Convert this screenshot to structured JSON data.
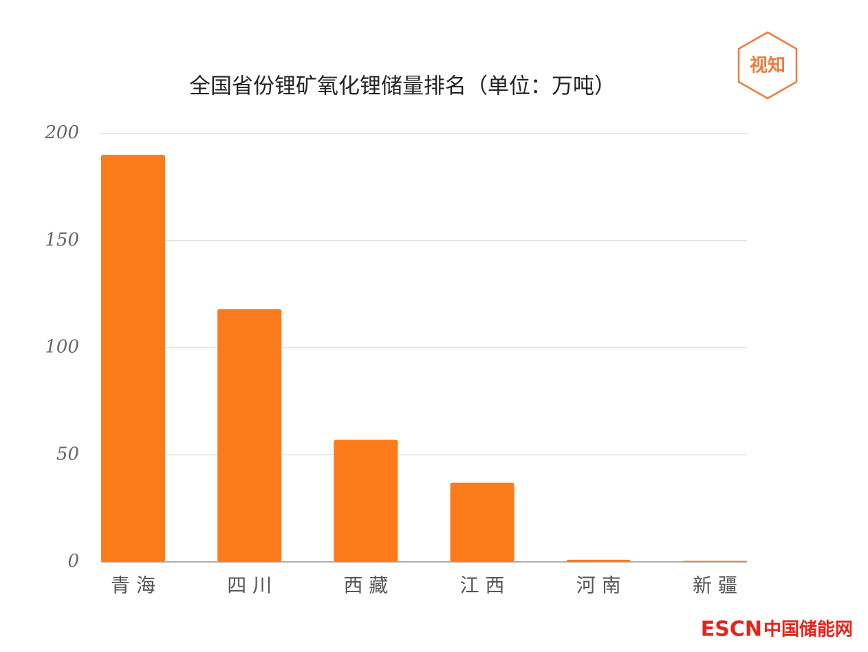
{
  "chart_data": {
    "type": "bar",
    "title": "全国省份锂矿氧化锂储量排名（单位：万吨）",
    "categories": [
      "青 海",
      "四 川",
      "西 藏",
      "江 西",
      "河 南",
      "新 疆"
    ],
    "values": [
      190,
      118,
      57,
      37,
      1,
      0.5
    ],
    "color": "#fb7a1a",
    "ylim": [
      0,
      200
    ],
    "yticks": [
      0,
      50,
      100,
      150,
      200
    ],
    "grid": true
  },
  "logos": {
    "badge": "视知",
    "footer_brand": "ESCN",
    "footer_name": "中国储能网"
  }
}
